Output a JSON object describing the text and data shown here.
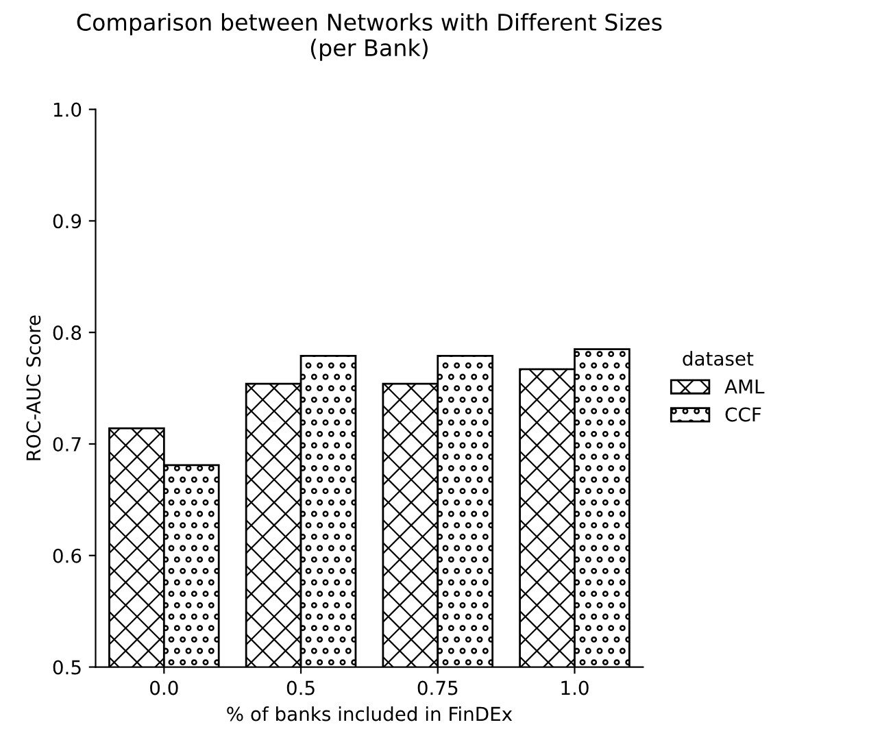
{
  "chart_data": {
    "type": "bar",
    "title": "Comparison between Networks with Different Sizes\n(per Bank)",
    "xlabel": "% of banks included in FinDEx",
    "ylabel": "ROC-AUC Score",
    "legend_title": "dataset",
    "categories": [
      "0.0",
      "0.5",
      "0.75",
      "1.0"
    ],
    "series": [
      {
        "name": "AML",
        "color": "#000000",
        "values": [
          0.714,
          0.754,
          0.754,
          0.767
        ]
      },
      {
        "name": "CCF",
        "color": "#000000",
        "values": [
          0.681,
          0.779,
          0.779,
          0.785
        ]
      }
    ],
    "ylim": [
      0.5,
      1.0
    ],
    "yticks": [
      {
        "value": 0.5,
        "label": "0.5"
      },
      {
        "value": 0.6,
        "label": "0.6"
      },
      {
        "value": 0.7,
        "label": "0.7"
      },
      {
        "value": 0.8,
        "label": "0.8"
      },
      {
        "value": 0.9,
        "label": "0.9"
      },
      {
        "value": 1.0,
        "label": "1.0"
      }
    ],
    "legend": "right",
    "grid": false
  }
}
